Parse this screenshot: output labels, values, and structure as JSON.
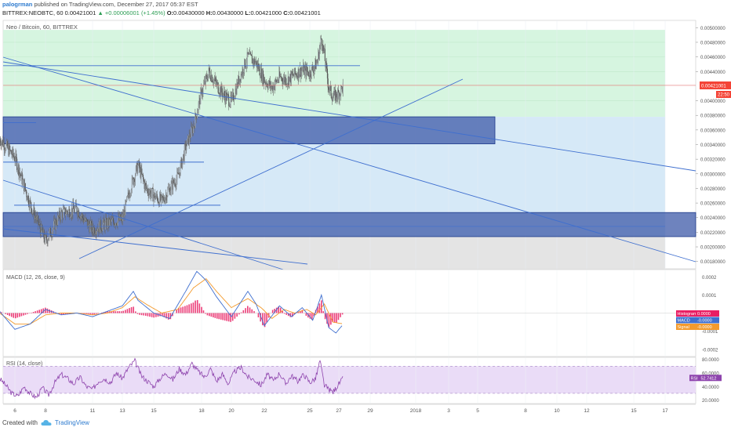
{
  "header": {
    "user": "palogrman",
    "published": "published on TradingView.com, December 27, 2017 05:37 EST",
    "symbol": "BITTREX:NEOBTC, 60",
    "last": "0.00421001",
    "change": "▲ +0.00006001 (+1.45%)",
    "ohlc": [
      {
        "k": "O:",
        "v": "0.00430000"
      },
      {
        "k": "H:",
        "v": "0.00430000"
      },
      {
        "k": "L:",
        "v": "0.00421000"
      },
      {
        "k": "C:",
        "v": "0.00421001"
      }
    ]
  },
  "footer": {
    "created": "Created with",
    "brand": "TradingView"
  },
  "colors": {
    "up": "#2e9e55",
    "link": "#2e7bcf",
    "trendline": "#3f6fcf",
    "zone": "#3d5aa8",
    "macd": "#3f6fcf",
    "signal": "#f39a2c",
    "histogram": "#e91e63",
    "rsi": "#8e44ad",
    "priceTag": "#f44336"
  },
  "chart_data": [
    {
      "type": "candlestick",
      "title": "Neo / Bitcoin, 60, BITTREX",
      "y_ticks": [
        "0.00500000",
        "0.00480000",
        "0.00460000",
        "0.00440000",
        "0.00400000",
        "0.00380000",
        "0.00360000",
        "0.00340000",
        "0.00320000",
        "0.00300000",
        "0.00280000",
        "0.00260000",
        "0.00240000",
        "0.00220000",
        "0.00200000",
        "0.00180000"
      ],
      "ylim": [
        0.0017,
        0.0051
      ],
      "price_label": "0.00421001",
      "timer_label": "22:50",
      "x_ticks": [
        "6",
        "8",
        "11",
        "13",
        "15",
        "18",
        "20",
        "22",
        "25",
        "27",
        "29",
        "2018",
        "3",
        "5",
        "8",
        "10",
        "12",
        "15",
        "17"
      ],
      "close_path": [
        [
          5,
          0.00348
        ],
        [
          6,
          0.00322
        ],
        [
          7,
          0.00258
        ],
        [
          8,
          0.00208
        ],
        [
          9,
          0.00246
        ],
        [
          10,
          0.00252
        ],
        [
          10.5,
          0.00236
        ],
        [
          11,
          0.00224
        ],
        [
          12,
          0.00232
        ],
        [
          13,
          0.00238
        ],
        [
          13.5,
          0.0028
        ],
        [
          14,
          0.00312
        ],
        [
          14.5,
          0.0028
        ],
        [
          15,
          0.0027
        ],
        [
          15.5,
          0.00262
        ],
        [
          16,
          0.0028
        ],
        [
          16.5,
          0.00295
        ],
        [
          17,
          0.00336
        ],
        [
          17.5,
          0.00366
        ],
        [
          18,
          0.00412
        ],
        [
          18.5,
          0.0044
        ],
        [
          19,
          0.00422
        ],
        [
          19.5,
          0.00408
        ],
        [
          20,
          0.00398
        ],
        [
          20.5,
          0.00432
        ],
        [
          21,
          0.0046
        ],
        [
          21.5,
          0.00452
        ],
        [
          22,
          0.00428
        ],
        [
          22.5,
          0.00418
        ],
        [
          23,
          0.00432
        ],
        [
          23.5,
          0.00428
        ],
        [
          24,
          0.00436
        ],
        [
          24.5,
          0.00442
        ],
        [
          25,
          0.00438
        ],
        [
          25.5,
          0.00452
        ],
        [
          25.8,
          0.00486
        ],
        [
          26,
          0.00462
        ],
        [
          26.3,
          0.00418
        ],
        [
          26.6,
          0.00405
        ],
        [
          27,
          0.0041
        ],
        [
          27.3,
          0.00421
        ]
      ],
      "horizontal_lines": [
        0.00448,
        0.00421,
        0.00316,
        0.00257
      ],
      "zones": [
        {
          "from": 0.00341,
          "to": 0.00378
        },
        {
          "from": 0.00214,
          "to": 0.00247
        }
      ],
      "background_bands": [
        {
          "from": 0.00378,
          "to": 0.00497,
          "color": "#d6f5e0"
        },
        {
          "from": 0.00214,
          "to": 0.00378,
          "color": "#d6e9f7"
        },
        {
          "from": 0.0017,
          "to": 0.00214,
          "color": "#e4e4e4"
        }
      ]
    },
    {
      "type": "line",
      "title": "MACD (12, 26, close, 9)",
      "y_ticks": [
        "0.0002",
        "0.0001",
        "-0.0001",
        "-0.0002"
      ],
      "ylim": [
        -0.00024,
        0.00024
      ],
      "legend": [
        {
          "label": "Histogram",
          "value": "0.0000",
          "color": "#e91e63"
        },
        {
          "label": "MACD",
          "value": "-0.0000",
          "color": "#3f6fcf"
        },
        {
          "label": "Signal",
          "value": "-0.0000",
          "color": "#f39a2c"
        }
      ],
      "macd": [
        [
          5,
          1e-05
        ],
        [
          6,
          -9e-05
        ],
        [
          7,
          -6e-05
        ],
        [
          8,
          2e-05
        ],
        [
          9,
          -1e-05
        ],
        [
          10,
          0.0
        ],
        [
          11,
          -2e-05
        ],
        [
          12,
          1e-05
        ],
        [
          13,
          4e-05
        ],
        [
          13.7,
          0.00012
        ],
        [
          14,
          7e-05
        ],
        [
          15,
          0.0
        ],
        [
          16,
          -3e-05
        ],
        [
          17,
          0.00012
        ],
        [
          17.7,
          0.00023
        ],
        [
          18.3,
          0.00018
        ],
        [
          19,
          9e-05
        ],
        [
          20,
          -2e-05
        ],
        [
          21,
          0.00012
        ],
        [
          21.5,
          5e-05
        ],
        [
          22,
          -7e-05
        ],
        [
          23,
          4e-05
        ],
        [
          23.8,
          -2e-05
        ],
        [
          24.5,
          3e-05
        ],
        [
          25.2,
          -4e-05
        ],
        [
          25.8,
          0.0001
        ],
        [
          26.3,
          -8e-05
        ],
        [
          26.8,
          -0.00011
        ],
        [
          27.3,
          -6e-05
        ]
      ],
      "signal": [
        [
          5,
          0.0
        ],
        [
          6,
          -6e-05
        ],
        [
          7,
          -6e-05
        ],
        [
          8,
          -1e-05
        ],
        [
          9,
          0.0
        ],
        [
          10,
          0.0
        ],
        [
          11,
          -1e-05
        ],
        [
          12,
          0.0
        ],
        [
          13,
          3e-05
        ],
        [
          13.8,
          9e-05
        ],
        [
          14.5,
          5e-05
        ],
        [
          15.5,
          0.0
        ],
        [
          16.5,
          2e-05
        ],
        [
          17.5,
          0.00014
        ],
        [
          18.3,
          0.00019
        ],
        [
          19,
          0.00012
        ],
        [
          20,
          3e-05
        ],
        [
          21,
          8e-05
        ],
        [
          21.8,
          3e-05
        ],
        [
          22.5,
          -3e-05
        ],
        [
          23.3,
          2e-05
        ],
        [
          24,
          0.0
        ],
        [
          24.8,
          2e-05
        ],
        [
          25.4,
          -1e-05
        ],
        [
          26,
          5e-05
        ],
        [
          26.6,
          -5e-05
        ],
        [
          27.3,
          -6e-05
        ]
      ]
    },
    {
      "type": "line",
      "title": "RSI (14, close)",
      "y_ticks": [
        "80.0000",
        "60.0000",
        "40.0000",
        "20.0000"
      ],
      "ylim": [
        15,
        83
      ],
      "overbought": 70,
      "oversold": 30,
      "legend": {
        "label": "RSI",
        "value": "52.7412",
        "color": "#8e44ad"
      },
      "values": [
        [
          5,
          52
        ],
        [
          5.4,
          42
        ],
        [
          5.8,
          30
        ],
        [
          6.2,
          26
        ],
        [
          6.6,
          40
        ],
        [
          7,
          30
        ],
        [
          7.4,
          24
        ],
        [
          7.8,
          38
        ],
        [
          8.2,
          28
        ],
        [
          8.6,
          46
        ],
        [
          9,
          58
        ],
        [
          9.4,
          52
        ],
        [
          9.8,
          44
        ],
        [
          10.2,
          54
        ],
        [
          10.6,
          40
        ],
        [
          11,
          36
        ],
        [
          11.4,
          48
        ],
        [
          11.8,
          52
        ],
        [
          12.2,
          46
        ],
        [
          12.6,
          60
        ],
        [
          13,
          52
        ],
        [
          13.4,
          68
        ],
        [
          13.8,
          78
        ],
        [
          14.2,
          56
        ],
        [
          14.6,
          48
        ],
        [
          15,
          40
        ],
        [
          15.4,
          52
        ],
        [
          15.8,
          60
        ],
        [
          16.2,
          50
        ],
        [
          16.6,
          66
        ],
        [
          17,
          58
        ],
        [
          17.4,
          74
        ],
        [
          17.8,
          62
        ],
        [
          18.2,
          54
        ],
        [
          18.6,
          66
        ],
        [
          19,
          48
        ],
        [
          19.4,
          58
        ],
        [
          19.8,
          44
        ],
        [
          20.2,
          62
        ],
        [
          20.6,
          68
        ],
        [
          21,
          54
        ],
        [
          21.4,
          50
        ],
        [
          21.8,
          42
        ],
        [
          22.2,
          58
        ],
        [
          22.6,
          48
        ],
        [
          23,
          60
        ],
        [
          23.4,
          44
        ],
        [
          23.8,
          56
        ],
        [
          24.2,
          48
        ],
        [
          24.6,
          58
        ],
        [
          25,
          46
        ],
        [
          25.4,
          52
        ],
        [
          25.7,
          78
        ],
        [
          26,
          42
        ],
        [
          26.3,
          36
        ],
        [
          26.6,
          32
        ],
        [
          27,
          44
        ],
        [
          27.3,
          52.74
        ]
      ]
    }
  ]
}
